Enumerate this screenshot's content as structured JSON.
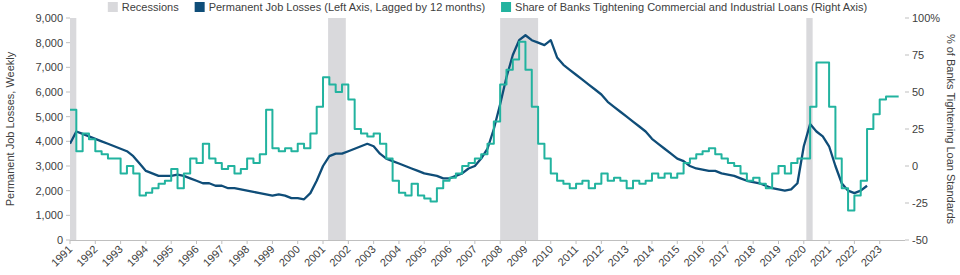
{
  "chart_data": {
    "type": "line",
    "y_label": "Permanent Job Losses, Weekly",
    "y2_label": "% of Banks Tightening Loan Standards",
    "x": [
      1991,
      1991.25,
      1991.5,
      1991.75,
      1992,
      1992.25,
      1992.5,
      1992.75,
      1993,
      1993.25,
      1993.5,
      1993.75,
      1994,
      1994.25,
      1994.5,
      1994.75,
      1995,
      1995.25,
      1995.5,
      1995.75,
      1996,
      1996.25,
      1996.5,
      1996.75,
      1997,
      1997.25,
      1997.5,
      1997.75,
      1998,
      1998.25,
      1998.5,
      1998.75,
      1999,
      1999.25,
      1999.5,
      1999.75,
      2000,
      2000.25,
      2000.5,
      2000.75,
      2001,
      2001.25,
      2001.5,
      2001.75,
      2002,
      2002.25,
      2002.5,
      2002.75,
      2003,
      2003.25,
      2003.5,
      2003.75,
      2004,
      2004.25,
      2004.5,
      2004.75,
      2005,
      2005.25,
      2005.5,
      2005.75,
      2006,
      2006.25,
      2006.5,
      2006.75,
      2007,
      2007.25,
      2007.5,
      2007.75,
      2008,
      2008.25,
      2008.5,
      2008.75,
      2009,
      2009.25,
      2009.5,
      2009.75,
      2010,
      2010.25,
      2010.5,
      2010.75,
      2011,
      2011.25,
      2011.5,
      2011.75,
      2012,
      2012.25,
      2012.5,
      2012.75,
      2013,
      2013.25,
      2013.5,
      2013.75,
      2014,
      2014.25,
      2014.5,
      2014.75,
      2015,
      2015.25,
      2015.5,
      2015.75,
      2016,
      2016.25,
      2016.5,
      2016.75,
      2017,
      2017.25,
      2017.5,
      2017.75,
      2018,
      2018.25,
      2018.5,
      2018.75,
      2019,
      2019.25,
      2019.5,
      2019.75,
      2020,
      2020.25,
      2020.5,
      2020.75,
      2021,
      2021.25,
      2021.5,
      2021.75,
      2022,
      2022.25,
      2022.5,
      2022.75,
      2023,
      2023.25,
      2023.5,
      2023.75
    ],
    "xlim": [
      1991,
      2024
    ],
    "xticks": [
      1991,
      1992,
      1993,
      1994,
      1995,
      1996,
      1997,
      1998,
      1999,
      2000,
      2001,
      2002,
      2003,
      2004,
      2005,
      2006,
      2007,
      2008,
      2009,
      2010,
      2011,
      2012,
      2013,
      2014,
      2015,
      2016,
      2017,
      2018,
      2019,
      2020,
      2021,
      2022,
      2023
    ],
    "ylim": [
      0,
      9000
    ],
    "yticks": [
      0,
      {
        "value": 1000,
        "label": "1,000"
      },
      {
        "value": 2000,
        "label": "2,000"
      },
      {
        "value": 3000,
        "label": "3,000"
      },
      {
        "value": 4000,
        "label": "4,000"
      },
      {
        "value": 5000,
        "label": "5,000"
      },
      {
        "value": 6000,
        "label": "6,000"
      },
      {
        "value": 7000,
        "label": "7,000"
      },
      {
        "value": 8000,
        "label": "8,000"
      },
      {
        "value": 9000,
        "label": "9,000"
      }
    ],
    "y2lim": [
      -50,
      100
    ],
    "y2ticks": [
      -50,
      -25,
      0,
      25,
      50,
      75,
      {
        "value": 100,
        "label": "100%"
      }
    ],
    "grid": false,
    "legend": "top",
    "recessions": {
      "name": "Recessions",
      "color": "#d9d9dc",
      "periods": [
        [
          1990.8,
          1991.25
        ],
        [
          2001.2,
          2001.9
        ],
        [
          2008.0,
          2009.5
        ],
        [
          2020.1,
          2020.35
        ]
      ]
    },
    "series": [
      {
        "name": "Permanent Job Losses (Left Axis, Lagged by 12 months)",
        "color": "#0f4d78",
        "axis": "y",
        "type": "line",
        "line_style": "solid",
        "values": [
          3900,
          4400,
          4300,
          4200,
          4100,
          4000,
          3900,
          3800,
          3700,
          3600,
          3400,
          3100,
          2800,
          2700,
          2600,
          2600,
          2600,
          2650,
          2600,
          2500,
          2400,
          2300,
          2300,
          2200,
          2200,
          2100,
          2100,
          2050,
          2000,
          1950,
          1900,
          1850,
          1800,
          1850,
          1800,
          1700,
          1700,
          1650,
          1900,
          2400,
          3000,
          3400,
          3500,
          3500,
          3600,
          3700,
          3800,
          3900,
          3800,
          3500,
          3300,
          3200,
          3100,
          3000,
          2900,
          2800,
          2700,
          2650,
          2600,
          2500,
          2500,
          2600,
          2700,
          2900,
          3000,
          3300,
          3700,
          4500,
          5500,
          6600,
          7500,
          8100,
          8300,
          8100,
          8000,
          7900,
          8100,
          7400,
          7100,
          6900,
          6700,
          6500,
          6300,
          6100,
          5900,
          5600,
          5400,
          5200,
          5000,
          4800,
          4600,
          4400,
          4100,
          3900,
          3700,
          3500,
          3300,
          3200,
          3000,
          2900,
          2850,
          2800,
          2800,
          2700,
          2650,
          2600,
          2500,
          2400,
          2350,
          2300,
          2200,
          2100,
          2050,
          2000,
          2050,
          2300,
          3800,
          4700,
          4400,
          4200,
          3800,
          3000,
          2300,
          2000,
          1900,
          2000,
          2200,
          null,
          null,
          null,
          null,
          null
        ]
      },
      {
        "name": "Share of Banks Tightening Commercial and Industrial Loans (Right Axis)",
        "color": "#22b39f",
        "axis": "y2",
        "type": "line",
        "line_style": "step",
        "values": [
          38,
          10,
          22,
          18,
          10,
          8,
          5,
          5,
          -5,
          0,
          -5,
          -20,
          -18,
          -15,
          -12,
          -10,
          -2,
          -15,
          -5,
          5,
          2,
          15,
          5,
          2,
          -2,
          0,
          -5,
          -2,
          5,
          2,
          8,
          38,
          12,
          10,
          12,
          10,
          15,
          12,
          22,
          40,
          60,
          55,
          50,
          55,
          45,
          25,
          22,
          20,
          22,
          15,
          5,
          -10,
          -18,
          -20,
          -12,
          -20,
          -22,
          -24,
          -15,
          -10,
          -8,
          -5,
          0,
          2,
          5,
          8,
          15,
          30,
          55,
          65,
          72,
          84,
          65,
          40,
          15,
          5,
          -5,
          -10,
          -12,
          -15,
          -12,
          -10,
          -15,
          -12,
          -5,
          -10,
          -8,
          -10,
          -15,
          -10,
          -12,
          -10,
          -5,
          -8,
          -5,
          -8,
          -5,
          2,
          5,
          8,
          10,
          12,
          8,
          5,
          2,
          0,
          -5,
          -10,
          -8,
          -12,
          -15,
          -5,
          0,
          -5,
          2,
          5,
          5,
          40,
          70,
          70,
          40,
          5,
          -15,
          -30,
          -20,
          -10,
          25,
          35,
          45,
          47,
          47,
          47
        ]
      }
    ]
  }
}
